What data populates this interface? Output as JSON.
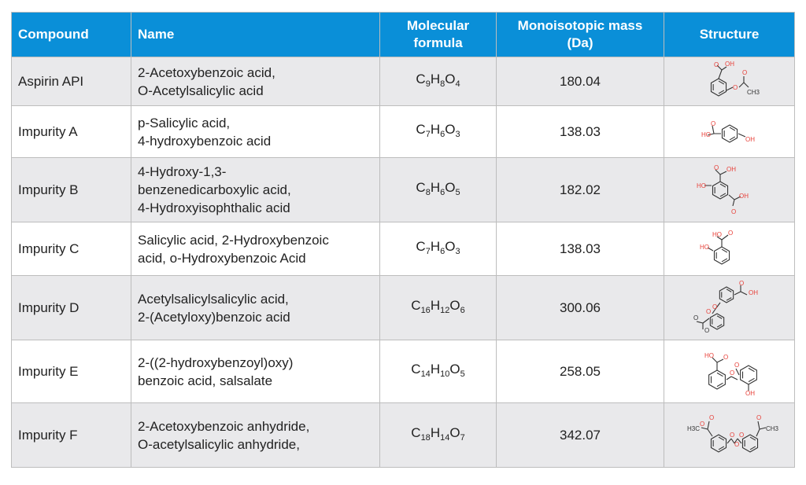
{
  "table": {
    "headers": {
      "compound": "Compound",
      "name": "Name",
      "formula_line1": "Molecular",
      "formula_line2": "formula",
      "mass_line1": "Monoisotopic mass",
      "mass_line2": "(Da)",
      "structure": "Structure"
    },
    "rows": [
      {
        "compound": "Aspirin API",
        "name_line1": "2-Acetoxybenzoic acid,",
        "name_line2": "O-Acetylsalicylic acid",
        "name_line3": "",
        "formula": [
          {
            "el": "C",
            "n": "9"
          },
          {
            "el": "H",
            "n": "8"
          },
          {
            "el": "O",
            "n": "4"
          }
        ],
        "mass": "180.04",
        "structure": {
          "icon": "aspirin-structure-icon",
          "labels": [
            "O",
            "OH",
            "O",
            "O",
            "CH3"
          ]
        }
      },
      {
        "compound": "Impurity A",
        "name_line1": "p-Salicylic acid,",
        "name_line2": "4-hydroxybenzoic acid",
        "name_line3": "",
        "formula": [
          {
            "el": "C",
            "n": "7"
          },
          {
            "el": "H",
            "n": "6"
          },
          {
            "el": "O",
            "n": "3"
          }
        ],
        "mass": "138.03",
        "structure": {
          "icon": "impurity-a-structure-icon",
          "labels": [
            "HO",
            "O",
            "OH"
          ]
        }
      },
      {
        "compound": "Impurity B",
        "name_line1": "4-Hydroxy-1,3-",
        "name_line2": "benzenedicarboxylic acid,",
        "name_line3": "4-Hydroxyisophthalic acid",
        "formula": [
          {
            "el": "C",
            "n": "8"
          },
          {
            "el": "H",
            "n": "6"
          },
          {
            "el": "O",
            "n": "5"
          }
        ],
        "mass": "182.02",
        "structure": {
          "icon": "impurity-b-structure-icon",
          "labels": [
            "O",
            "OH",
            "HO",
            "O",
            "OH"
          ]
        }
      },
      {
        "compound": "Impurity C",
        "name_line1": "Salicylic acid, 2-Hydroxybenzoic",
        "name_line2": "acid, o-Hydroxybenzoic Acid",
        "name_line3": "",
        "formula": [
          {
            "el": "C",
            "n": "7"
          },
          {
            "el": "H",
            "n": "6"
          },
          {
            "el": "O",
            "n": "3"
          }
        ],
        "mass": "138.03",
        "structure": {
          "icon": "impurity-c-structure-icon",
          "labels": [
            "HO",
            "O",
            "HO"
          ]
        }
      },
      {
        "compound": "Impurity D",
        "name_line1": "Acetylsalicylsalicylic acid,",
        "name_line2": "2-(Acetyloxy)benzoic acid",
        "name_line3": "",
        "formula": [
          {
            "el": "C",
            "n": "16"
          },
          {
            "el": "H",
            "n": "12"
          },
          {
            "el": "O",
            "n": "6"
          }
        ],
        "mass": "300.06",
        "structure": {
          "icon": "impurity-d-structure-icon",
          "labels": [
            "O",
            "OH",
            "O",
            "O",
            "O",
            "O"
          ]
        }
      },
      {
        "compound": "Impurity E",
        "name_line1": "2-((2-hydroxybenzoyl)oxy)",
        "name_line2": "benzoic acid, salsalate",
        "name_line3": "",
        "formula": [
          {
            "el": "C",
            "n": "14"
          },
          {
            "el": "H",
            "n": "10"
          },
          {
            "el": "O",
            "n": "5"
          }
        ],
        "mass": "258.05",
        "structure": {
          "icon": "impurity-e-structure-icon",
          "labels": [
            "HO",
            "O",
            "O",
            "O",
            "OH"
          ]
        }
      },
      {
        "compound": "Impurity F",
        "name_line1": "2-Acetoxybenzoic anhydride,",
        "name_line2": "O-acetylsalicylic anhydride,",
        "name_line3": "",
        "formula": [
          {
            "el": "C",
            "n": "18"
          },
          {
            "el": "H",
            "n": "14"
          },
          {
            "el": "O",
            "n": "7"
          }
        ],
        "mass": "342.07",
        "structure": {
          "icon": "impurity-f-structure-icon",
          "labels": [
            "O",
            "H3C",
            "O",
            "O",
            "O",
            "O",
            "O",
            "CH3"
          ]
        }
      }
    ]
  },
  "colors": {
    "header_bg": "#0a8fd8",
    "header_text": "#ffffff",
    "row_shade": "#e9e9eb",
    "oxygen": "#e8413a"
  }
}
